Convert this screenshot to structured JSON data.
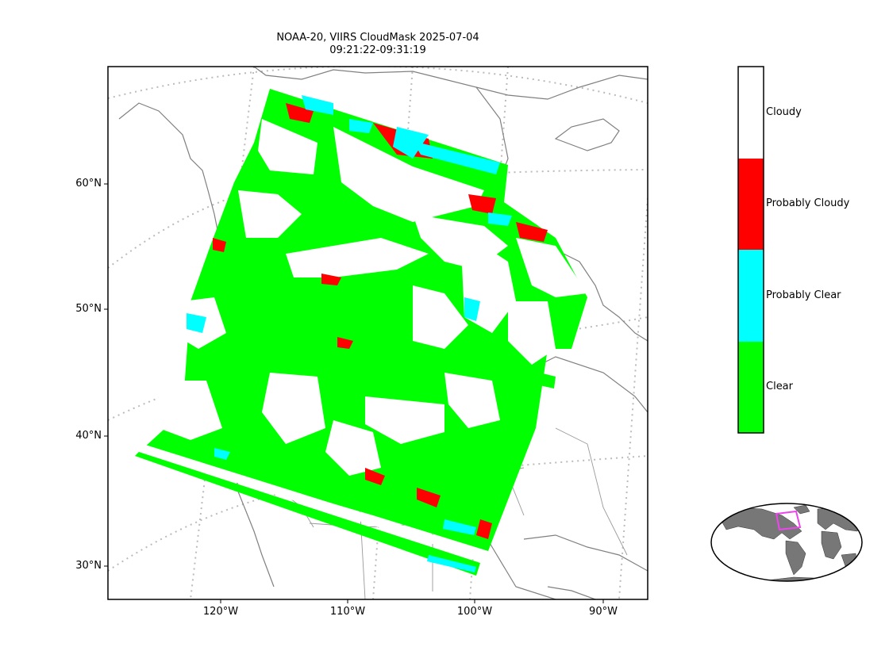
{
  "title_line1": "NOAA-20, VIIRS CloudMask 2025-07-04",
  "title_line2": "09:21:22-09:31:19",
  "lat_labels": [
    "60°N",
    "50°N",
    "40°N",
    "30°N"
  ],
  "lon_labels": [
    "120°W",
    "110°W",
    "100°W",
    "90°W"
  ],
  "colorbar": {
    "categories": [
      {
        "label": "Cloudy",
        "color": "#ffffff"
      },
      {
        "label": "Probably Cloudy",
        "color": "#ff0000"
      },
      {
        "label": "Probably Clear",
        "color": "#00ffff"
      },
      {
        "label": "Clear",
        "color": "#00ff00"
      }
    ]
  },
  "colors": {
    "coastline": "#808080",
    "graticule": "#bbbbbb",
    "inset_land": "#777777",
    "inset_box": "#ee44ee"
  }
}
